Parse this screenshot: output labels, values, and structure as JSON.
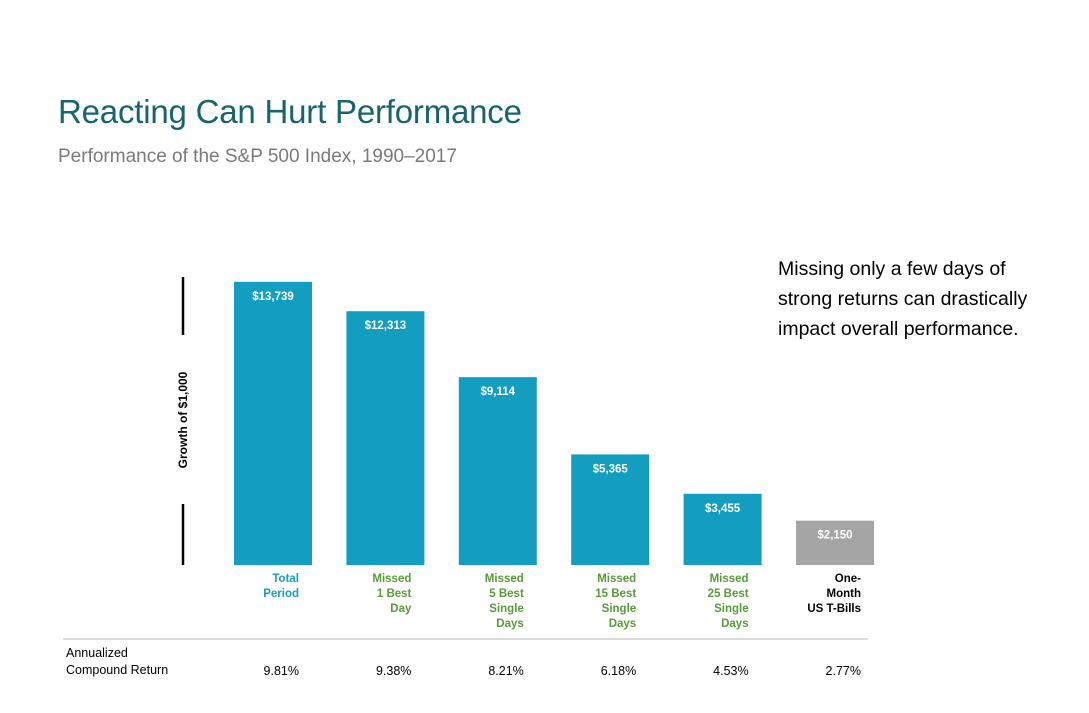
{
  "title": "Reacting Can Hurt Performance",
  "subtitle": "Performance of the S&P 500 Index, 1990–2017",
  "callout": "Missing only a few days of strong returns can drastically impact overall performance.",
  "colors": {
    "bar_primary": "#139ec0",
    "bar_secondary": "#a5a5a5",
    "label_primary": "#139ec0",
    "label_green": "#5a9a3a",
    "label_black": "#000000"
  },
  "chart_data": {
    "type": "bar",
    "ylabel": "Growth of $1,000",
    "ylim": [
      0,
      14700
    ],
    "categories": [
      [
        "Total",
        "Period"
      ],
      [
        "Missed",
        "1 Best",
        "Day"
      ],
      [
        "Missed",
        "5 Best",
        "Single",
        "Days"
      ],
      [
        "Missed",
        "15 Best",
        "Single",
        "Days"
      ],
      [
        "Missed",
        "25 Best",
        "Single",
        "Days"
      ],
      [
        "One-",
        "Month",
        "US T-Bills"
      ]
    ],
    "category_colors": [
      "label_primary",
      "label_green",
      "label_green",
      "label_green",
      "label_green",
      "label_black"
    ],
    "bar_colors": [
      "bar_primary",
      "bar_primary",
      "bar_primary",
      "bar_primary",
      "bar_primary",
      "bar_secondary"
    ],
    "values": [
      13739,
      12313,
      9114,
      5365,
      3455,
      2150
    ],
    "value_labels": [
      "$13,739",
      "$12,313",
      "$9,114",
      "$5,365",
      "$3,455",
      "$2,150"
    ],
    "returns_header": [
      "Annualized",
      "Compound Return"
    ],
    "returns": [
      "9.81%",
      "9.38%",
      "8.21%",
      "6.18%",
      "4.53%",
      "2.77%"
    ]
  }
}
